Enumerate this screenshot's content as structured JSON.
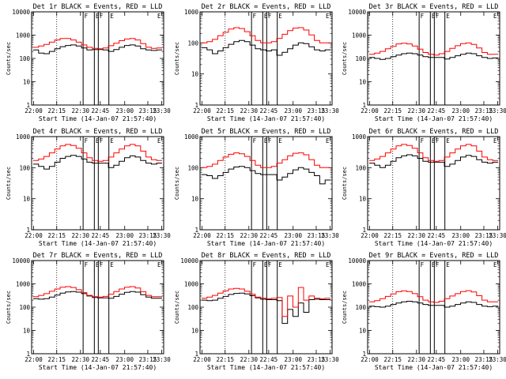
{
  "chart_data": [
    {
      "type": "line",
      "title": "Det 1r BLACK = Events, RED = LLD",
      "xlabel": "Start Time (14-Jan-07 21:57:40)",
      "ylabel": "Counts/sec",
      "yscale": "log",
      "ylim": [
        1,
        10000
      ],
      "x_ticks": [
        "22:00",
        "22:15",
        "22:30",
        "22:45",
        "23:00",
        "23:15",
        "23:30"
      ],
      "y_ticks": [
        "1",
        "10",
        "100",
        "1000",
        "10000"
      ],
      "markers": [
        "F",
        "E",
        "F",
        "E"
      ],
      "series": [
        {
          "name": "BLACK = Events",
          "color": "#000000",
          "values": [
            230,
            170,
            160,
            200,
            260,
            320,
            360,
            380,
            340,
            280,
            230,
            240,
            240,
            230,
            200,
            240,
            300,
            360,
            380,
            340,
            260,
            230,
            220,
            230
          ]
        },
        {
          "name": "RED = LLD",
          "color": "#ff0000",
          "values": [
            300,
            340,
            400,
            500,
            620,
            720,
            720,
            620,
            500,
            380,
            300,
            270,
            260,
            280,
            350,
            450,
            580,
            680,
            720,
            620,
            430,
            300,
            270,
            280
          ]
        }
      ]
    },
    {
      "type": "line",
      "title": "Det 2r BLACK = Events, RED = LLD",
      "xlabel": "Start Time (14-Jan-07 21:57:40)",
      "ylabel": "Counts/sec",
      "yscale": "log",
      "ylim": [
        1,
        1000
      ],
      "x_ticks": [
        "22:00",
        "22:15",
        "22:30",
        "22:45",
        "23:00",
        "23:15",
        "23:30"
      ],
      "y_ticks": [
        "1",
        "10",
        "100",
        "1000"
      ],
      "markers": [
        "F",
        "E",
        "F",
        "E"
      ],
      "series": [
        {
          "name": "BLACK = Events",
          "color": "#000000",
          "values": [
            70,
            60,
            45,
            55,
            70,
            90,
            110,
            120,
            110,
            85,
            65,
            60,
            55,
            60,
            40,
            50,
            65,
            85,
            100,
            95,
            75,
            60,
            55,
            60
          ]
        },
        {
          "name": "RED = LLD",
          "color": "#ff0000",
          "values": [
            100,
            110,
            130,
            170,
            220,
            280,
            310,
            290,
            230,
            170,
            120,
            100,
            100,
            110,
            140,
            190,
            250,
            300,
            310,
            260,
            180,
            120,
            100,
            100
          ]
        }
      ]
    },
    {
      "type": "line",
      "title": "Det 3r BLACK = Events, RED = LLD",
      "xlabel": "Start Time (14-Jan-07 21:57:40)",
      "ylabel": "Counts/sec",
      "yscale": "log",
      "ylim": [
        1,
        10000
      ],
      "x_ticks": [
        "22:00",
        "22:15",
        "22:30",
        "22:45",
        "23:00",
        "23:15",
        "23:30"
      ],
      "y_ticks": [
        "1",
        "10",
        "100",
        "1000",
        "10000"
      ],
      "markers": [
        "F",
        "E",
        "F",
        "E"
      ],
      "series": [
        {
          "name": "BLACK = Events",
          "color": "#000000",
          "values": [
            110,
            100,
            90,
            100,
            120,
            140,
            160,
            170,
            160,
            140,
            120,
            110,
            110,
            110,
            95,
            110,
            130,
            150,
            170,
            160,
            130,
            110,
            100,
            105
          ]
        },
        {
          "name": "RED = LLD",
          "color": "#ff0000",
          "values": [
            150,
            170,
            200,
            260,
            330,
            420,
            450,
            420,
            340,
            250,
            180,
            150,
            140,
            160,
            200,
            270,
            350,
            430,
            460,
            400,
            280,
            180,
            150,
            150
          ]
        }
      ]
    },
    {
      "type": "line",
      "title": "Det 4r BLACK = Events, RED = LLD",
      "xlabel": "Start Time (14-Jan-07 21:57:40)",
      "ylabel": "Counts/sec",
      "yscale": "log",
      "ylim": [
        1,
        1000
      ],
      "x_ticks": [
        "22:00",
        "22:15",
        "22:30",
        "22:45",
        "23:00",
        "23:15",
        "23:30"
      ],
      "y_ticks": [
        "1",
        "10",
        "100",
        "1000"
      ],
      "markers": [
        "F",
        "E",
        "F",
        "E"
      ],
      "series": [
        {
          "name": "BLACK = Events",
          "color": "#000000",
          "values": [
            130,
            110,
            90,
            110,
            150,
            200,
            230,
            250,
            230,
            190,
            150,
            140,
            140,
            140,
            100,
            120,
            160,
            210,
            240,
            220,
            170,
            140,
            130,
            140
          ]
        },
        {
          "name": "RED = LLD",
          "color": "#ff0000",
          "values": [
            170,
            190,
            230,
            300,
            400,
            500,
            560,
            520,
            420,
            300,
            210,
            170,
            160,
            170,
            220,
            300,
            400,
            500,
            560,
            500,
            340,
            220,
            180,
            170
          ]
        }
      ]
    },
    {
      "type": "line",
      "title": "Det 5r BLACK = Events, RED = LLD",
      "xlabel": "Start Time (14-Jan-07 21:57:40)",
      "ylabel": "Counts/sec",
      "yscale": "log",
      "ylim": [
        1,
        1000
      ],
      "x_ticks": [
        "22:00",
        "22:15",
        "22:30",
        "22:45",
        "23:00",
        "23:15",
        "23:30"
      ],
      "y_ticks": [
        "1",
        "10",
        "100",
        "1000"
      ],
      "markers": [
        "F",
        "E",
        "F",
        "E"
      ],
      "series": [
        {
          "name": "BLACK = Events",
          "color": "#000000",
          "values": [
            60,
            55,
            45,
            55,
            70,
            90,
            105,
            110,
            100,
            80,
            65,
            60,
            60,
            60,
            40,
            50,
            65,
            85,
            100,
            90,
            70,
            55,
            30,
            40
          ]
        },
        {
          "name": "RED = LLD",
          "color": "#ff0000",
          "values": [
            100,
            110,
            130,
            170,
            220,
            270,
            300,
            280,
            230,
            170,
            120,
            100,
            100,
            110,
            140,
            180,
            240,
            290,
            300,
            260,
            180,
            120,
            100,
            100
          ]
        }
      ]
    },
    {
      "type": "line",
      "title": "Det 6r BLACK = Events, RED = LLD",
      "xlabel": "Start Time (14-Jan-07 21:57:40)",
      "ylabel": "Counts/sec",
      "yscale": "log",
      "ylim": [
        1,
        1000
      ],
      "x_ticks": [
        "22:00",
        "22:15",
        "22:30",
        "22:45",
        "23:00",
        "23:15",
        "23:30"
      ],
      "y_ticks": [
        "1",
        "10",
        "100",
        "1000"
      ],
      "markers": [
        "F",
        "E",
        "F",
        "E"
      ],
      "series": [
        {
          "name": "BLACK = Events",
          "color": "#000000",
          "values": [
            140,
            120,
            100,
            120,
            160,
            210,
            240,
            260,
            240,
            200,
            160,
            150,
            150,
            150,
            110,
            130,
            170,
            220,
            250,
            230,
            180,
            150,
            140,
            150
          ]
        },
        {
          "name": "RED = LLD",
          "color": "#ff0000",
          "values": [
            170,
            190,
            230,
            300,
            400,
            500,
            560,
            520,
            420,
            300,
            210,
            170,
            160,
            170,
            220,
            300,
            400,
            500,
            560,
            500,
            340,
            220,
            180,
            170
          ]
        }
      ]
    },
    {
      "type": "line",
      "title": "Det 7r BLACK = Events, RED = LLD",
      "xlabel": "Start Time (14-Jan-07 21:57:40)",
      "ylabel": "Counts/sec",
      "yscale": "log",
      "ylim": [
        1,
        10000
      ],
      "x_ticks": [
        "22:00",
        "22:15",
        "22:30",
        "22:45",
        "23:00",
        "23:15",
        "23:30"
      ],
      "y_ticks": [
        "1",
        "10",
        "100",
        "1000",
        "10000"
      ],
      "markers": [
        "F",
        "E",
        "F",
        "E"
      ],
      "series": [
        {
          "name": "BLACK = Events",
          "color": "#000000",
          "values": [
            230,
            220,
            230,
            270,
            330,
            400,
            450,
            470,
            440,
            380,
            300,
            260,
            250,
            250,
            240,
            290,
            360,
            430,
            470,
            440,
            340,
            270,
            240,
            240
          ]
        },
        {
          "name": "RED = LLD",
          "color": "#ff0000",
          "values": [
            280,
            320,
            380,
            480,
            600,
            720,
            760,
            700,
            560,
            420,
            320,
            280,
            270,
            290,
            360,
            470,
            600,
            720,
            760,
            660,
            460,
            320,
            280,
            280
          ]
        }
      ]
    },
    {
      "type": "line",
      "title": "Det 8r BLACK = Events, RED = LLD",
      "xlabel": "Start Time (14-Jan-07 21:57:40)",
      "ylabel": "Counts/sec",
      "yscale": "log",
      "ylim": [
        1,
        10000
      ],
      "x_ticks": [
        "22:00",
        "22:15",
        "22:30",
        "22:45",
        "23:00",
        "23:15",
        "23:30"
      ],
      "y_ticks": [
        "1",
        "10",
        "100",
        "1000",
        "10000"
      ],
      "markers": [
        "F",
        "E",
        "F",
        "E"
      ],
      "series": [
        {
          "name": "BLACK = Events",
          "color": "#000000",
          "values": [
            200,
            190,
            200,
            240,
            290,
            350,
            390,
            400,
            370,
            310,
            250,
            220,
            210,
            210,
            190,
            20,
            80,
            40,
            150,
            60,
            210,
            220,
            210,
            210
          ]
        },
        {
          "name": "RED = LLD",
          "color": "#ff0000",
          "values": [
            240,
            270,
            320,
            400,
            500,
            600,
            640,
            600,
            480,
            360,
            270,
            240,
            230,
            240,
            260,
            40,
            300,
            100,
            700,
            200,
            300,
            240,
            230,
            240
          ]
        }
      ]
    },
    {
      "type": "line",
      "title": "Det 9r BLACK = Events, RED = LLD",
      "xlabel": "Start Time (14-Jan-07 21:57:40)",
      "ylabel": "Counts/sec",
      "yscale": "log",
      "ylim": [
        1,
        10000
      ],
      "x_ticks": [
        "22:00",
        "22:15",
        "22:30",
        "22:45",
        "23:00",
        "23:15",
        "23:30"
      ],
      "y_ticks": [
        "1",
        "10",
        "100",
        "1000",
        "10000"
      ],
      "markers": [
        "F",
        "E",
        "F",
        "E"
      ],
      "series": [
        {
          "name": "BLACK = Events",
          "color": "#000000",
          "values": [
            110,
            105,
            100,
            110,
            130,
            150,
            170,
            180,
            170,
            150,
            130,
            120,
            120,
            120,
            100,
            110,
            130,
            150,
            170,
            160,
            130,
            110,
            105,
            110
          ]
        },
        {
          "name": "RED = LLD",
          "color": "#ff0000",
          "values": [
            170,
            190,
            230,
            290,
            370,
            460,
            500,
            470,
            380,
            280,
            200,
            170,
            160,
            180,
            230,
            300,
            380,
            470,
            510,
            450,
            310,
            200,
            170,
            170
          ]
        }
      ]
    }
  ]
}
